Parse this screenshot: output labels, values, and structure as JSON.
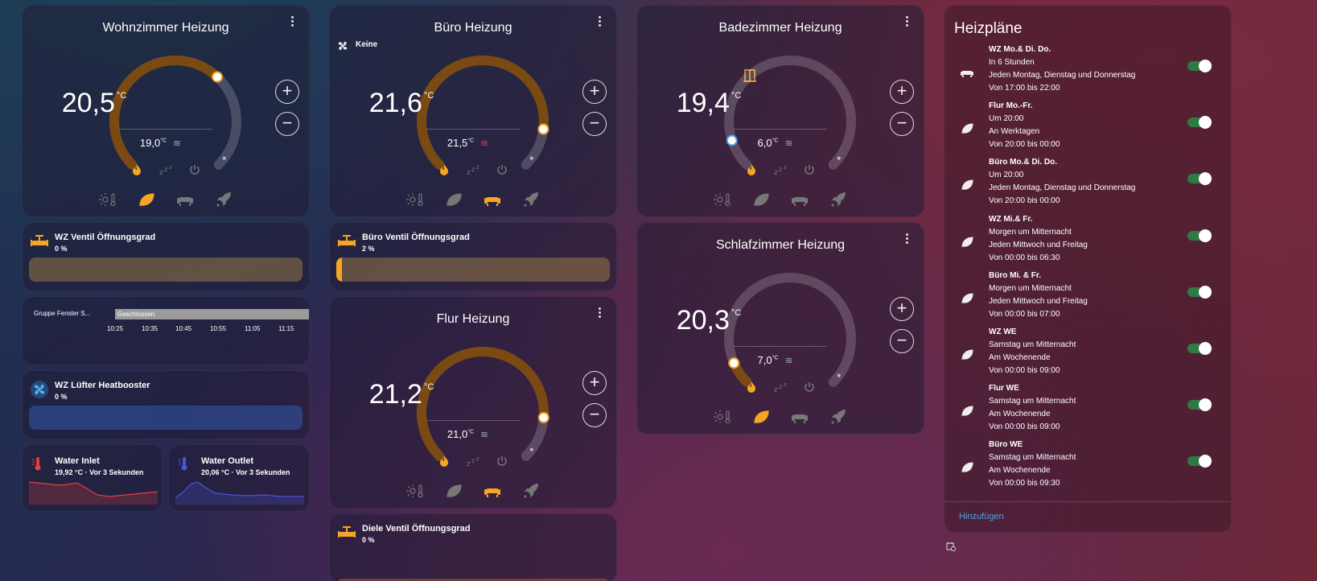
{
  "thermostats": [
    {
      "id": "wz",
      "title": "Wohnzimmer Heizung",
      "target": "20,5",
      "unit": "°C",
      "current": "19,0",
      "current_unit": "°C",
      "heating": false,
      "preset": "eco",
      "label": "",
      "color": "#7a4a12"
    },
    {
      "id": "buero",
      "title": "Büro Heizung",
      "target": "21,6",
      "unit": "°C",
      "current": "21,5",
      "current_unit": "°C",
      "heating": true,
      "preset": "comfort",
      "label": "Keine",
      "color": "#7a4a12"
    },
    {
      "id": "bad",
      "title": "Badezimmer Heizung",
      "target": "19,4",
      "unit": "°C",
      "current": "6,0",
      "current_unit": "°C",
      "heating": false,
      "preset": "none",
      "label": "",
      "color": "#8a6a6a"
    },
    {
      "id": "flur",
      "title": "Flur Heizung",
      "target": "21,2",
      "unit": "°C",
      "current": "21,0",
      "current_unit": "°C",
      "heating": false,
      "preset": "comfort",
      "label": "",
      "color": "#7a4a12"
    },
    {
      "id": "schlaf",
      "title": "Schlafzimmer Heizung",
      "target": "20,3",
      "unit": "°C",
      "current": "7,0",
      "current_unit": "°C",
      "heating": false,
      "preset": "eco",
      "label": "",
      "color": "#7a4a12"
    }
  ],
  "valves": [
    {
      "title": "WZ Ventil Öffnungsgrad",
      "value": "0 %",
      "fraction": 0.0,
      "bar": "rgba(150,120,70,0.55)"
    },
    {
      "title": "Büro Ventil Öffnungsgrad",
      "value": "2 %",
      "fraction": 0.02,
      "bar": "rgba(150,120,70,0.55)"
    },
    {
      "title": "WZ Lüfter Heatbooster",
      "value": "0 %",
      "fraction": 0.0,
      "bar": "rgba(50,90,170,0.55)"
    },
    {
      "title": "Diele Ventil Öffnungsgrad",
      "value": "0 %",
      "fraction": 0.0,
      "bar": "rgba(150,90,60,0.55)"
    }
  ],
  "timeline": {
    "label": "Gruppe Fenster S...",
    "state": "Geschlossen",
    "ticks": [
      "10:25",
      "10:35",
      "10:45",
      "10:55",
      "11:05",
      "11:15"
    ]
  },
  "water": [
    {
      "title": "Water Inlet",
      "value": "19,92 °C · Vor 3 Sekunden",
      "color": "#e04040"
    },
    {
      "title": "Water Outlet",
      "value": "20,06 °C · Vor 3 Sekunden",
      "color": "#4a55d8"
    }
  ],
  "schedule": {
    "title": "Heizpläne",
    "add_label": "Hinzufügen",
    "items": [
      {
        "title": "WZ Mo.& Di. Do.",
        "l1": "In 6 Stunden",
        "l2": "Jeden Montag, Dienstag und Donnerstag",
        "l3": "Von 17:00 bis 22:00",
        "icon": "sofa-icon"
      },
      {
        "title": "Flur Mo.-Fr.",
        "l1": "Um 20:00",
        "l2": "An Werktagen",
        "l3": "Von 20:00 bis 00:00",
        "icon": "leaf-icon"
      },
      {
        "title": "Büro Mo.& Di. Do.",
        "l1": "Um 20:00",
        "l2": "Jeden Montag, Dienstag und Donnerstag",
        "l3": "Von 20:00 bis 00:00",
        "icon": "leaf-icon"
      },
      {
        "title": "WZ Mi.& Fr.",
        "l1": "Morgen um Mitternacht",
        "l2": "Jeden Mittwoch und Freitag",
        "l3": "Von 00:00 bis 06:30",
        "icon": "leaf-icon"
      },
      {
        "title": "Büro Mi. & Fr.",
        "l1": "Morgen um Mitternacht",
        "l2": "Jeden Mittwoch und Freitag",
        "l3": "Von 00:00 bis 07:00",
        "icon": "leaf-icon"
      },
      {
        "title": "WZ WE",
        "l1": "Samstag um Mitternacht",
        "l2": "Am Wochenende",
        "l3": "Von 00:00 bis 09:00",
        "icon": "leaf-icon"
      },
      {
        "title": "Flur WE",
        "l1": "Samstag um Mitternacht",
        "l2": "Am Wochenende",
        "l3": "Von 00:00 bis 09:00",
        "icon": "leaf-icon"
      },
      {
        "title": "Büro WE",
        "l1": "Samstag um Mitternacht",
        "l2": "Am Wochenende",
        "l3": "Von 00:00 bis 09:30",
        "icon": "leaf-icon"
      }
    ]
  }
}
